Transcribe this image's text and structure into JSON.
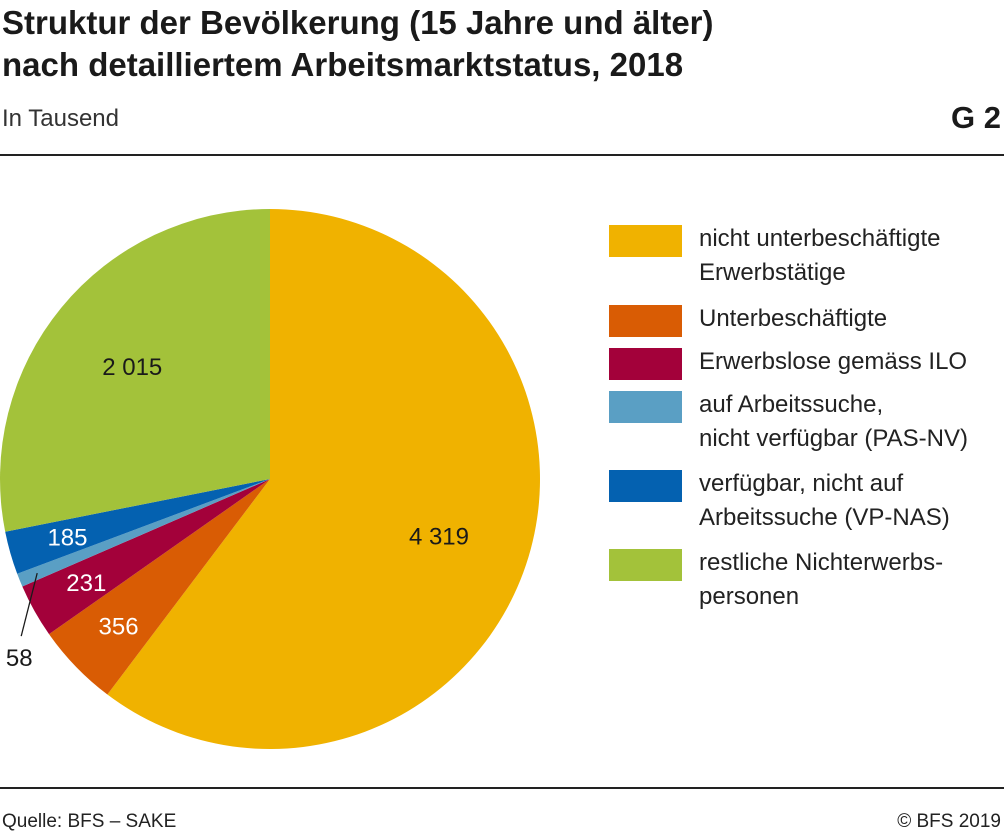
{
  "title_lines": [
    "Struktur der Bevölkerung (15 Jahre und älter)",
    "nach detailliertem Arbeitsmarktstatus, 2018"
  ],
  "subtitle": "In Tausend",
  "figure_id": "G 2",
  "source": "Quelle: BFS – SAKE",
  "copyright": "© BFS 2019",
  "chart_data": {
    "type": "pie",
    "title": "Struktur der Bevölkerung (15 Jahre und älter) nach detailliertem Arbeitsmarktstatus, 2018",
    "unit": "In Tausend",
    "start_angle": "12 o'clock",
    "direction": "clockwise",
    "slices": [
      {
        "label": "nicht unterbeschäftigte Erwerbstätige",
        "legend_lines": [
          "nicht unterbeschäftigte",
          "Erwerbstätige"
        ],
        "value": 4319,
        "value_label": "4 319",
        "color": "#F0B200",
        "text_color": "#1a1a1a"
      },
      {
        "label": "Unterbeschäftigte",
        "legend_lines": [
          "Unterbeschäftigte"
        ],
        "value": 356,
        "value_label": "356",
        "color": "#D95C04",
        "text_color": "#ffffff"
      },
      {
        "label": "Erwerbslose gemäss ILO",
        "legend_lines": [
          "Erwerbslose gemäss ILO"
        ],
        "value": 231,
        "value_label": "231",
        "color": "#A3013A",
        "text_color": "#ffffff"
      },
      {
        "label": "auf Arbeitssuche, nicht verfügbar (PAS-NV)",
        "legend_lines": [
          "auf Arbeitssuche,",
          "nicht verfügbar (PAS-NV)"
        ],
        "value": 58,
        "value_label": "58",
        "color": "#5A9FC4",
        "text_color": "#1a1a1a"
      },
      {
        "label": "verfügbar, nicht auf Arbeitssuche (VP-NAS)",
        "legend_lines": [
          "verfügbar, nicht auf",
          "Arbeitssuche (VP-NAS)"
        ],
        "value": 185,
        "value_label": "185",
        "color": "#0461B0",
        "text_color": "#ffffff"
      },
      {
        "label": "restliche Nichterwerbspersonen",
        "legend_lines": [
          "restliche Nichterwerbs-",
          "personen"
        ],
        "value": 2015,
        "value_label": "2 015",
        "color": "#A3C23A",
        "text_color": "#1a1a1a"
      }
    ],
    "legend_position": "right"
  }
}
